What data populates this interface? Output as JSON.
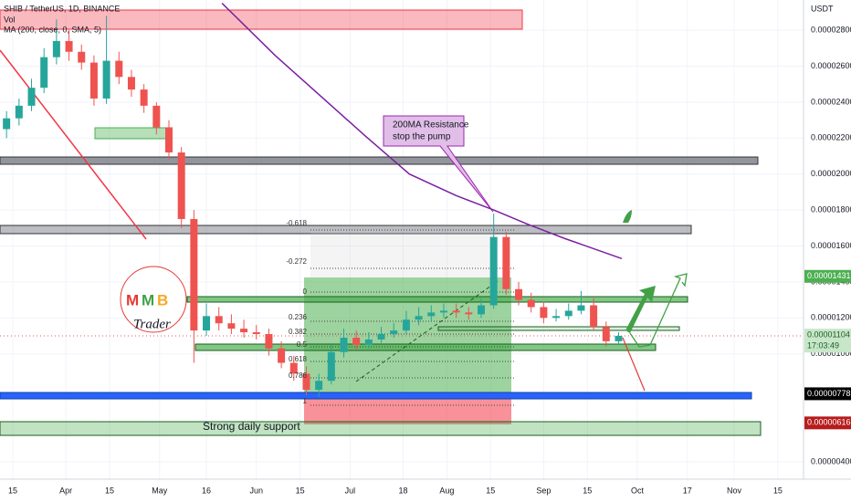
{
  "chart_data": {
    "type": "candlestick",
    "title": "SHIB / TetherUS, 1D, BINANCE",
    "legend_items": [
      "Vol",
      "MA (200, close, 0, SMA, 5)"
    ],
    "y_axis_label": "USDT",
    "up_color": "#26a69a",
    "down_color": "#ef5350",
    "grid": true,
    "x": [
      "Mar 13",
      "Mar 17",
      "Mar 21",
      "Mar 25",
      "Mar 29",
      "Apr 2",
      "Apr 6",
      "Apr 10",
      "Apr 14",
      "Apr 18",
      "Apr 22",
      "Apr 26",
      "Apr 30",
      "May 4",
      "May 8",
      "May 12",
      "May 16",
      "May 20",
      "May 24",
      "May 28",
      "Jun 1",
      "Jun 5",
      "Jun 9",
      "Jun 13",
      "Jun 17",
      "Jun 21",
      "Jun 25",
      "Jun 29",
      "Jul 3",
      "Jul 7",
      "Jul 11",
      "Jul 15",
      "Jul 19",
      "Jul 23",
      "Jul 27",
      "Jul 31",
      "Aug 4",
      "Aug 8",
      "Aug 12",
      "Aug 16",
      "Aug 20",
      "Aug 24",
      "Aug 28",
      "Sep 1",
      "Sep 5",
      "Sep 9",
      "Sep 13",
      "Sep 17",
      "Sep 21",
      "Sep 25"
    ],
    "open": [
      2.25e-05,
      2.31e-05,
      2.38e-05,
      2.48e-05,
      2.65e-05,
      2.74e-05,
      2.68e-05,
      2.62e-05,
      2.42e-05,
      2.63e-05,
      2.54e-05,
      2.47e-05,
      2.38e-05,
      2.26e-05,
      2.12e-05,
      1.75e-05,
      1.13e-05,
      1.21e-05,
      1.17e-05,
      1.14e-05,
      1.12e-05,
      1.11e-05,
      1.03e-05,
      9.5e-06,
      8.9e-06,
      8e-06,
      8.5e-06,
      1.01e-05,
      1.09e-05,
      1.05e-05,
      1.08e-05,
      1.11e-05,
      1.13e-05,
      1.19e-05,
      1.21e-05,
      1.23e-05,
      1.24e-05,
      1.23e-05,
      1.22e-05,
      1.27e-05,
      1.65e-05,
      1.36e-05,
      1.3e-05,
      1.26e-05,
      1.2e-05,
      1.21e-05,
      1.24e-05,
      1.27e-05,
      1.15e-05,
      1.07e-05
    ],
    "high": [
      2.35e-05,
      2.42e-05,
      2.53e-05,
      2.7e-05,
      2.86e-05,
      2.8e-05,
      2.72e-05,
      2.66e-05,
      2.88e-05,
      2.68e-05,
      2.58e-05,
      2.5e-05,
      2.4e-05,
      2.3e-05,
      2.15e-05,
      1.8e-05,
      1.28e-05,
      1.26e-05,
      1.22e-05,
      1.19e-05,
      1.16e-05,
      1.14e-05,
      1.07e-05,
      9.9e-06,
      9.3e-06,
      8.9e-06,
      1.05e-05,
      1.14e-05,
      1.13e-05,
      1.12e-05,
      1.15e-05,
      1.17e-05,
      1.24e-05,
      1.26e-05,
      1.27e-05,
      1.28e-05,
      1.28e-05,
      1.26e-05,
      1.31e-05,
      1.78e-05,
      1.68e-05,
      1.4e-05,
      1.34e-05,
      1.29e-05,
      1.25e-05,
      1.28e-05,
      1.35e-05,
      1.31e-05,
      1.18e-05,
      1.12e-05
    ],
    "low": [
      2.2e-05,
      2.27e-05,
      2.35e-05,
      2.45e-05,
      2.61e-05,
      2.63e-05,
      2.58e-05,
      2.38e-05,
      2.39e-05,
      2.5e-05,
      2.43e-05,
      2.34e-05,
      2.22e-05,
      2.08e-05,
      1.7e-05,
      9.5e-06,
      1.1e-05,
      1.13e-05,
      1.11e-05,
      1.09e-05,
      1.08e-05,
      9.9e-06,
      9.2e-06,
      8.5e-06,
      7.7e-06,
      7.6e-06,
      8.3e-06,
      9.8e-06,
      1.02e-05,
      1.03e-05,
      1.06e-05,
      1.09e-05,
      1.11e-05,
      1.16e-05,
      1.18e-05,
      1.2e-05,
      1.2e-05,
      1.19e-05,
      1.2e-05,
      1.25e-05,
      1.33e-05,
      1.27e-05,
      1.23e-05,
      1.17e-05,
      1.18e-05,
      1.19e-05,
      1.22e-05,
      1.13e-05,
      1.04e-05,
      1.05e-05
    ],
    "close": [
      2.31e-05,
      2.38e-05,
      2.48e-05,
      2.65e-05,
      2.74e-05,
      2.68e-05,
      2.62e-05,
      2.42e-05,
      2.63e-05,
      2.54e-05,
      2.47e-05,
      2.38e-05,
      2.26e-05,
      2.12e-05,
      1.75e-05,
      1.13e-05,
      1.21e-05,
      1.17e-05,
      1.14e-05,
      1.12e-05,
      1.11e-05,
      1.03e-05,
      9.5e-06,
      8.9e-06,
      8e-06,
      8.5e-06,
      1.01e-05,
      1.09e-05,
      1.05e-05,
      1.08e-05,
      1.11e-05,
      1.13e-05,
      1.19e-05,
      1.21e-05,
      1.23e-05,
      1.24e-05,
      1.23e-05,
      1.22e-05,
      1.27e-05,
      1.65e-05,
      1.36e-05,
      1.3e-05,
      1.26e-05,
      1.2e-05,
      1.21e-05,
      1.24e-05,
      1.27e-05,
      1.15e-05,
      1.07e-05,
      1.1e-05
    ],
    "ma": {
      "color": "#7b1fa2",
      "x": [
        "May 21",
        "Jun 7",
        "Jul 6",
        "Jul 20",
        "Aug 4",
        "Aug 16",
        "Aug 27",
        "Sep 8",
        "Sep 26"
      ],
      "values": [
        2.95e-05,
        2.66e-05,
        2.21e-05,
        2e-05,
        1.88e-05,
        1.8e-05,
        1.72e-05,
        1.64e-05,
        1.53e-05
      ]
    },
    "ylim": [
      3.03e-06,
      2.968e-05
    ],
    "yticks": [
      {
        "value": 2.8e-05,
        "label": "0.00002800"
      },
      {
        "value": 2.6e-05,
        "label": "0.00002600"
      },
      {
        "value": 2.4e-05,
        "label": "0.00002400"
      },
      {
        "value": 2.2e-05,
        "label": "0.00002200"
      },
      {
        "value": 2e-05,
        "label": "0.00002000"
      },
      {
        "value": 1.8e-05,
        "label": "0.00001800"
      },
      {
        "value": 1.6e-05,
        "label": "0.00001600"
      },
      {
        "value": 1.4e-05,
        "label": "0.00001400"
      },
      {
        "value": 1.2e-05,
        "label": "0.00001200"
      },
      {
        "value": 1e-05,
        "label": "0.00001000"
      },
      {
        "value": 4e-06,
        "label": "0.00000400"
      }
    ],
    "xticks": [
      {
        "value": "Mar 15",
        "label": "15"
      },
      {
        "value": "Apr 1",
        "label": "Apr"
      },
      {
        "value": "Apr 15",
        "label": "15"
      },
      {
        "value": "May 1",
        "label": "May"
      },
      {
        "value": "May 16",
        "label": "16"
      },
      {
        "value": "Jun 1",
        "label": "Jun"
      },
      {
        "value": "Jun 15",
        "label": "15"
      },
      {
        "value": "Jul 1",
        "label": "Jul"
      },
      {
        "value": "Jul 18",
        "label": "18"
      },
      {
        "value": "Aug 1",
        "label": "Aug"
      },
      {
        "value": "Aug 15",
        "label": "15"
      },
      {
        "value": "Sep 1",
        "label": "Sep"
      },
      {
        "value": "Sep 15",
        "label": "15"
      },
      {
        "value": "Oct 1",
        "label": "Oct"
      },
      {
        "value": "Oct 17",
        "label": "17"
      },
      {
        "value": "Nov 1",
        "label": "Nov"
      },
      {
        "value": "Nov 15",
        "label": "15"
      }
    ],
    "price_tags": [
      {
        "value": 1.431e-05,
        "label": "0.00001431",
        "color": "#4caf50",
        "text_color": "#ffffff"
      },
      {
        "value": 1.104e-05,
        "label": "0.00001104",
        "color": "#c8e6c9",
        "text_color": "#1b5e20"
      },
      {
        "value": 7.78e-06,
        "label": "0.00000778",
        "color": "#000000",
        "text_color": "#ffffff"
      },
      {
        "value": 6.16e-06,
        "label": "0.00000616",
        "color": "#b71c1c",
        "text_color": "#ffffff"
      }
    ],
    "countdown": "17:03:49",
    "callout": [
      "200MA Resistance",
      "stop the pump"
    ],
    "support_label": "Strong daily support",
    "fib_labels": [
      "-0.618",
      "-0.272",
      "0",
      "0.236",
      "0.382",
      "0.5",
      "0.618",
      "0.786",
      "1"
    ],
    "logo": [
      "M",
      "M",
      "B",
      "Trader"
    ]
  }
}
